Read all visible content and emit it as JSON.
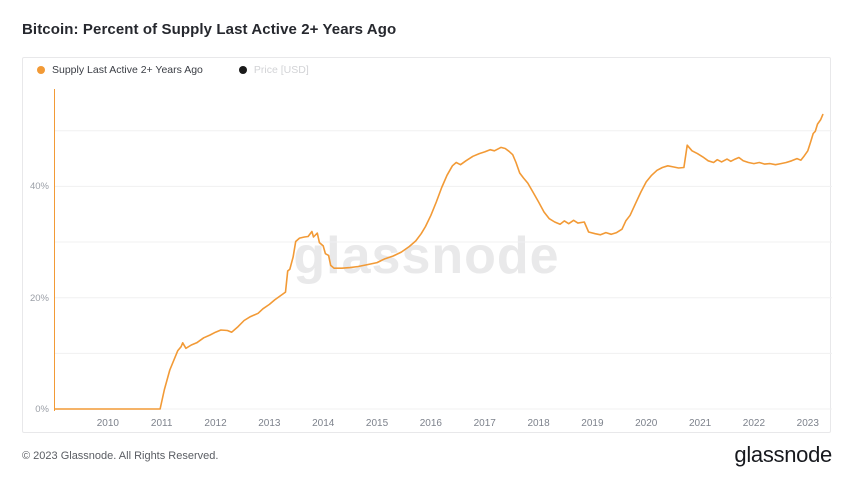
{
  "title": "Bitcoin: Percent of Supply Last Active 2+ Years Ago",
  "legend": {
    "supply": {
      "label": "Supply Last Active 2+ Years Ago",
      "color": "#f29a36"
    },
    "price": {
      "label": "Price [USD]",
      "dot_color": "#1a1a1a"
    }
  },
  "watermark": "glassnode",
  "footer": {
    "copyright": "© 2023 Glassnode. All Rights Reserved.",
    "brand": "glassnode"
  },
  "chart_data": {
    "type": "line",
    "title": "Bitcoin: Percent of Supply Last Active 2+ Years Ago",
    "grid": true,
    "legend_position": "top-left",
    "xlim": [
      2009.0,
      2023.45
    ],
    "ylim_pct": [
      0,
      57.5
    ],
    "x_ticks": [
      2010,
      2011,
      2012,
      2013,
      2014,
      2015,
      2016,
      2017,
      2018,
      2019,
      2020,
      2021,
      2022,
      2023
    ],
    "y_ticks": [
      {
        "pct": 0,
        "label": "0%"
      },
      {
        "pct": 20,
        "label": "20%"
      },
      {
        "pct": 40,
        "label": "40%"
      }
    ],
    "y_gridlines_pct": [
      0,
      10,
      20,
      30,
      40,
      50
    ],
    "hidden_series": [
      "Price [USD]"
    ],
    "series": [
      {
        "name": "Supply Last Active 2+ Years Ago",
        "color": "#f29a36",
        "unit": "%",
        "points": [
          [
            2009.0,
            0
          ],
          [
            2010.97,
            0
          ],
          [
            2011.05,
            3.5
          ],
          [
            2011.15,
            7.0
          ],
          [
            2011.3,
            10.5
          ],
          [
            2011.36,
            11.2
          ],
          [
            2011.39,
            11.9
          ],
          [
            2011.45,
            10.9
          ],
          [
            2011.55,
            11.5
          ],
          [
            2011.65,
            11.9
          ],
          [
            2011.78,
            12.8
          ],
          [
            2011.9,
            13.3
          ],
          [
            2012.0,
            13.8
          ],
          [
            2012.1,
            14.2
          ],
          [
            2012.22,
            14.1
          ],
          [
            2012.3,
            13.8
          ],
          [
            2012.42,
            14.8
          ],
          [
            2012.53,
            15.9
          ],
          [
            2012.65,
            16.6
          ],
          [
            2012.79,
            17.2
          ],
          [
            2012.88,
            18.0
          ],
          [
            2013.0,
            18.8
          ],
          [
            2013.1,
            19.6
          ],
          [
            2013.2,
            20.3
          ],
          [
            2013.3,
            21.0
          ],
          [
            2013.34,
            24.8
          ],
          [
            2013.38,
            25.1
          ],
          [
            2013.44,
            27.3
          ],
          [
            2013.49,
            30.1
          ],
          [
            2013.56,
            30.7
          ],
          [
            2013.65,
            30.9
          ],
          [
            2013.72,
            31.0
          ],
          [
            2013.79,
            31.9
          ],
          [
            2013.82,
            30.9
          ],
          [
            2013.89,
            31.6
          ],
          [
            2013.93,
            29.9
          ],
          [
            2014.0,
            29.3
          ],
          [
            2014.04,
            27.9
          ],
          [
            2014.1,
            27.6
          ],
          [
            2014.14,
            25.8
          ],
          [
            2014.2,
            25.3
          ],
          [
            2014.35,
            25.3
          ],
          [
            2014.5,
            25.4
          ],
          [
            2014.65,
            25.6
          ],
          [
            2014.8,
            25.9
          ],
          [
            2015.0,
            26.3
          ],
          [
            2015.15,
            27.0
          ],
          [
            2015.3,
            27.5
          ],
          [
            2015.45,
            28.2
          ],
          [
            2015.6,
            29.2
          ],
          [
            2015.72,
            30.2
          ],
          [
            2015.82,
            31.5
          ],
          [
            2015.9,
            32.8
          ],
          [
            2016.0,
            34.8
          ],
          [
            2016.1,
            37.2
          ],
          [
            2016.2,
            39.8
          ],
          [
            2016.3,
            42.0
          ],
          [
            2016.4,
            43.7
          ],
          [
            2016.47,
            44.3
          ],
          [
            2016.55,
            43.9
          ],
          [
            2016.65,
            44.6
          ],
          [
            2016.78,
            45.4
          ],
          [
            2016.9,
            45.9
          ],
          [
            2017.0,
            46.2
          ],
          [
            2017.1,
            46.6
          ],
          [
            2017.18,
            46.4
          ],
          [
            2017.3,
            47.0
          ],
          [
            2017.38,
            46.8
          ],
          [
            2017.45,
            46.3
          ],
          [
            2017.52,
            45.7
          ],
          [
            2017.58,
            44.3
          ],
          [
            2017.65,
            42.4
          ],
          [
            2017.72,
            41.5
          ],
          [
            2017.8,
            40.6
          ],
          [
            2017.9,
            38.9
          ],
          [
            2018.0,
            37.2
          ],
          [
            2018.1,
            35.4
          ],
          [
            2018.2,
            34.2
          ],
          [
            2018.3,
            33.6
          ],
          [
            2018.4,
            33.2
          ],
          [
            2018.48,
            33.8
          ],
          [
            2018.56,
            33.3
          ],
          [
            2018.65,
            33.9
          ],
          [
            2018.73,
            33.4
          ],
          [
            2018.85,
            33.6
          ],
          [
            2018.93,
            31.8
          ],
          [
            2019.05,
            31.5
          ],
          [
            2019.15,
            31.3
          ],
          [
            2019.25,
            31.7
          ],
          [
            2019.35,
            31.4
          ],
          [
            2019.45,
            31.7
          ],
          [
            2019.55,
            32.3
          ],
          [
            2019.62,
            33.8
          ],
          [
            2019.7,
            34.8
          ],
          [
            2019.8,
            36.9
          ],
          [
            2019.9,
            39.0
          ],
          [
            2020.0,
            40.8
          ],
          [
            2020.1,
            42.0
          ],
          [
            2020.2,
            42.9
          ],
          [
            2020.3,
            43.4
          ],
          [
            2020.4,
            43.7
          ],
          [
            2020.5,
            43.5
          ],
          [
            2020.6,
            43.3
          ],
          [
            2020.7,
            43.4
          ],
          [
            2020.76,
            47.4
          ],
          [
            2020.85,
            46.4
          ],
          [
            2020.95,
            45.9
          ],
          [
            2021.05,
            45.3
          ],
          [
            2021.15,
            44.6
          ],
          [
            2021.25,
            44.3
          ],
          [
            2021.32,
            44.8
          ],
          [
            2021.4,
            44.4
          ],
          [
            2021.5,
            44.9
          ],
          [
            2021.57,
            44.5
          ],
          [
            2021.65,
            44.9
          ],
          [
            2021.72,
            45.2
          ],
          [
            2021.8,
            44.6
          ],
          [
            2021.9,
            44.3
          ],
          [
            2022.0,
            44.1
          ],
          [
            2022.1,
            44.3
          ],
          [
            2022.2,
            44.0
          ],
          [
            2022.3,
            44.1
          ],
          [
            2022.4,
            43.9
          ],
          [
            2022.5,
            44.1
          ],
          [
            2022.6,
            44.3
          ],
          [
            2022.7,
            44.6
          ],
          [
            2022.8,
            45.0
          ],
          [
            2022.87,
            44.7
          ],
          [
            2022.92,
            45.3
          ],
          [
            2023.0,
            46.4
          ],
          [
            2023.05,
            47.9
          ],
          [
            2023.1,
            49.5
          ],
          [
            2023.14,
            49.9
          ],
          [
            2023.18,
            51.2
          ],
          [
            2023.24,
            52.0
          ],
          [
            2023.28,
            52.9
          ]
        ]
      }
    ]
  }
}
